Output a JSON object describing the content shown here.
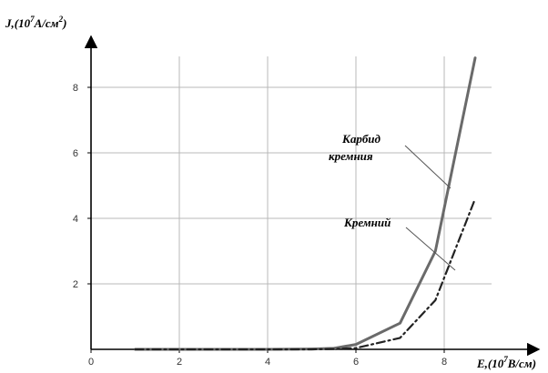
{
  "chart_data": {
    "type": "line",
    "ylabel_main": "J,(10",
    "ylabel_sup": "7",
    "ylabel_tail": "A/см",
    "ylabel_sup2": "2",
    "ylabel_close": ")",
    "xlabel_main": "E,(10",
    "xlabel_sup": "7",
    "xlabel_tail": "В/см)",
    "xlim": [
      0,
      9.5
    ],
    "ylim": [
      0,
      9
    ],
    "x_ticks": [
      0,
      2,
      4,
      6,
      8
    ],
    "x_tick_labels": [
      "0",
      "2",
      "4",
      "6",
      "8"
    ],
    "y_ticks": [
      2,
      4,
      6,
      8
    ],
    "y_tick_labels": [
      "2",
      "4",
      "6",
      "8"
    ],
    "grid": true,
    "series": [
      {
        "name_line1": "Карбид",
        "name_line2": "кремния",
        "style": "solid",
        "color": "#6a6a6a",
        "x": [
          1,
          2,
          3,
          4,
          5,
          5.5,
          6,
          7,
          7.8,
          8.7
        ],
        "y": [
          0,
          0,
          0,
          0,
          0.01,
          0.03,
          0.15,
          0.8,
          3.0,
          8.9
        ]
      },
      {
        "name": "Кремний",
        "style": "dash-dot",
        "color": "#222222",
        "x": [
          1,
          2,
          3,
          4,
          5,
          5.5,
          6,
          7,
          7.8,
          8.7
        ],
        "y": [
          0,
          0,
          0,
          0,
          0,
          0.01,
          0.04,
          0.35,
          1.5,
          4.6
        ]
      }
    ]
  }
}
